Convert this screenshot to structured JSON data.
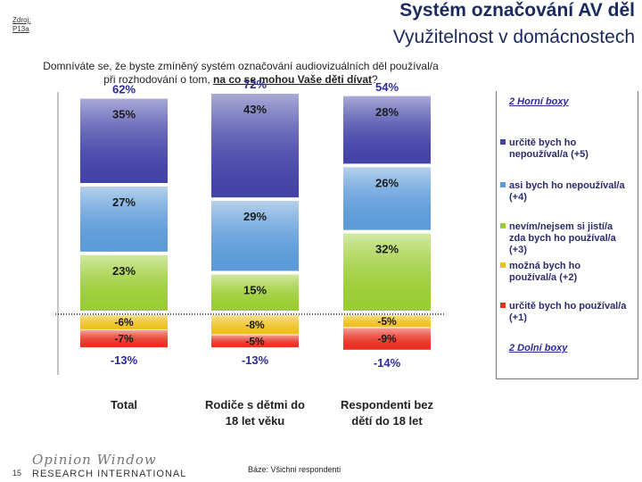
{
  "source": {
    "line1": "Zdroj:",
    "line2": "P13a"
  },
  "title": {
    "line1": "Systém označování AV děl",
    "line2": "Využitelnost v domácnostech"
  },
  "question": {
    "line1": "Domníváte se, že byste zmíněný systém označování audiovizuálních děl používal/a",
    "line2a": "při rozhodování o tom, ",
    "line2b": "na co se mohou Vaše děti dívat",
    "line2c": "?"
  },
  "footer": {
    "page": "15",
    "logo_top": "Opinion Window",
    "logo_bottom": "RESEARCH INTERNATIONAL",
    "base": "Báze: Všichni respondenti"
  },
  "legend": {
    "top_title": "2 Horní boxy",
    "bottom_title": "2 Dolní boxy",
    "items": [
      {
        "label": "určitě bych ho nepoužíval/a (+5)",
        "color": "#4444a8"
      },
      {
        "label": "asi bych ho nepoužíval/a (+4)",
        "color": "#5c9ad8"
      },
      {
        "label": "nevím/nejsem si jistí/a zda bych ho používal/a (+3)",
        "color": "#9acd32"
      },
      {
        "label": "možná bych ho používal/a (+2)",
        "color": "#f0c020"
      },
      {
        "label": "určitě bych ho používal/a (+1)",
        "color": "#e83020"
      }
    ]
  },
  "chart_data": {
    "type": "bar",
    "categories": [
      "Total",
      "Rodiče s dětmi do 18 let věku",
      "Respondenti bez dětí do 18 let"
    ],
    "series": [
      {
        "name": "určitě bych ho nepoužíval/a (+5)",
        "values": [
          35,
          43,
          28
        ],
        "labels": [
          "35%",
          "43%",
          "28%"
        ],
        "color": "#4444a8"
      },
      {
        "name": "asi bych ho nepoužíval/a (+4)",
        "values": [
          27,
          29,
          26
        ],
        "labels": [
          "27%",
          "29%",
          "26%"
        ],
        "color": "#5c9ad8"
      },
      {
        "name": "nevím/nejsem si jistí/a zda bych ho používal/a (+3)",
        "values": [
          23,
          15,
          32
        ],
        "labels": [
          "23%",
          "15%",
          "32%"
        ],
        "color": "#9acd32"
      },
      {
        "name": "možná bych ho používal/a (+2)",
        "values": [
          -6,
          -8,
          -5
        ],
        "labels": [
          "-6%",
          "-8%",
          "-5%"
        ],
        "color": "#f0c020"
      },
      {
        "name": "určitě bych ho používal/a (+1)",
        "values": [
          -7,
          -5,
          -9
        ],
        "labels": [
          "-7%",
          "-5%",
          "-9%"
        ],
        "color": "#e83020"
      }
    ],
    "top_totals": [
      "62%",
      "72%",
      "54%"
    ],
    "bottom_totals": [
      "-13%",
      "-13%",
      "-14%"
    ],
    "category_labels": [
      [
        "Total"
      ],
      [
        "Rodiče s dětmi do",
        "18 let věku"
      ],
      [
        "Respondenti bez",
        "dětí do 18 let"
      ]
    ]
  }
}
